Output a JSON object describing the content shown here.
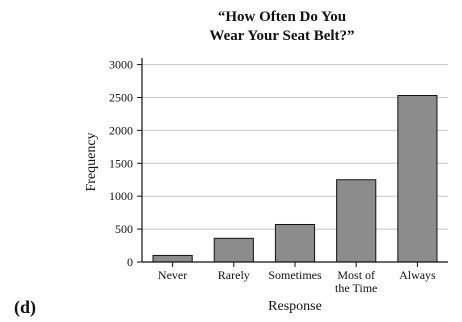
{
  "panel_label": "(d)",
  "chart_data": {
    "type": "bar",
    "title_lines": [
      "“How Often Do You",
      "Wear Your Seat Belt?”"
    ],
    "xlabel": "Response",
    "ylabel": "Frequency",
    "categories": [
      [
        "Never"
      ],
      [
        "Rarely"
      ],
      [
        "Sometimes"
      ],
      [
        "Most of",
        "the Time"
      ],
      [
        "Always"
      ]
    ],
    "values": [
      100,
      360,
      570,
      1250,
      2530
    ],
    "ylim": [
      0,
      3100
    ],
    "yticks": [
      0,
      500,
      1000,
      1500,
      2000,
      2500,
      3000
    ],
    "grid": true,
    "bar_color": "#8c8c8c",
    "grid_color": "#c8c8c8"
  }
}
